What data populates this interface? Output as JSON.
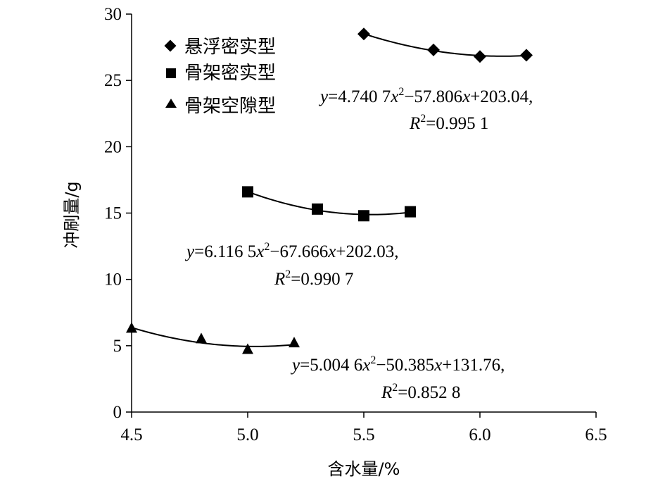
{
  "chart_data": {
    "type": "scatter",
    "xlabel": "含水量/%",
    "ylabel": "冲刷量/g",
    "xlim": [
      4.5,
      6.5
    ],
    "ylim": [
      0,
      30
    ],
    "xticks": [
      "4.5",
      "5.0",
      "5.5",
      "6.0",
      "6.5"
    ],
    "yticks": [
      "0",
      "5",
      "10",
      "15",
      "20",
      "25",
      "30"
    ],
    "grid": false,
    "legend_position": "top-left",
    "series": [
      {
        "name": "悬浮密实型",
        "marker": "diamond",
        "x": [
          5.5,
          5.8,
          6.0,
          6.2
        ],
        "y": [
          28.5,
          27.3,
          26.8,
          26.9
        ],
        "trend": {
          "a": 4.7407,
          "b": -57.806,
          "c": 203.04,
          "x_from": 5.5,
          "x_to": 6.2
        },
        "equation": {
          "y": "y",
          "eq1": "=4.740 7",
          "x1": "x",
          "sup": "2",
          "mid": "−57.806",
          "x2": "x",
          "tail": "+203.04,",
          "r": "R",
          "rsup": "2",
          "rval": "=0.995 1"
        }
      },
      {
        "name": "骨架密实型",
        "marker": "square",
        "x": [
          5.0,
          5.3,
          5.5,
          5.7
        ],
        "y": [
          16.6,
          15.3,
          14.8,
          15.1
        ],
        "trend": {
          "a": 6.1165,
          "b": -67.666,
          "c": 202.03,
          "x_from": 5.0,
          "x_to": 5.7
        },
        "equation": {
          "y": "y",
          "eq1": "=6.116 5",
          "x1": "x",
          "sup": "2",
          "mid": "−67.666",
          "x2": "x",
          "tail": "+202.03,",
          "r": "R",
          "rsup": "2",
          "rval": "=0.990 7"
        }
      },
      {
        "name": "骨架空隙型",
        "marker": "triangle",
        "x": [
          4.5,
          4.8,
          5.0,
          5.2
        ],
        "y": [
          6.3,
          5.5,
          4.7,
          5.2
        ],
        "trend": {
          "a": 5.0046,
          "b": -50.385,
          "c": 131.76,
          "x_from": 4.5,
          "x_to": 5.2
        },
        "equation": {
          "y": "y",
          "eq1": "=5.004 6",
          "x1": "x",
          "sup": "2",
          "mid": "−50.385",
          "x2": "x",
          "tail": "+131.76,",
          "r": "R",
          "rsup": "2",
          "rval": "=0.852 8"
        }
      }
    ]
  }
}
